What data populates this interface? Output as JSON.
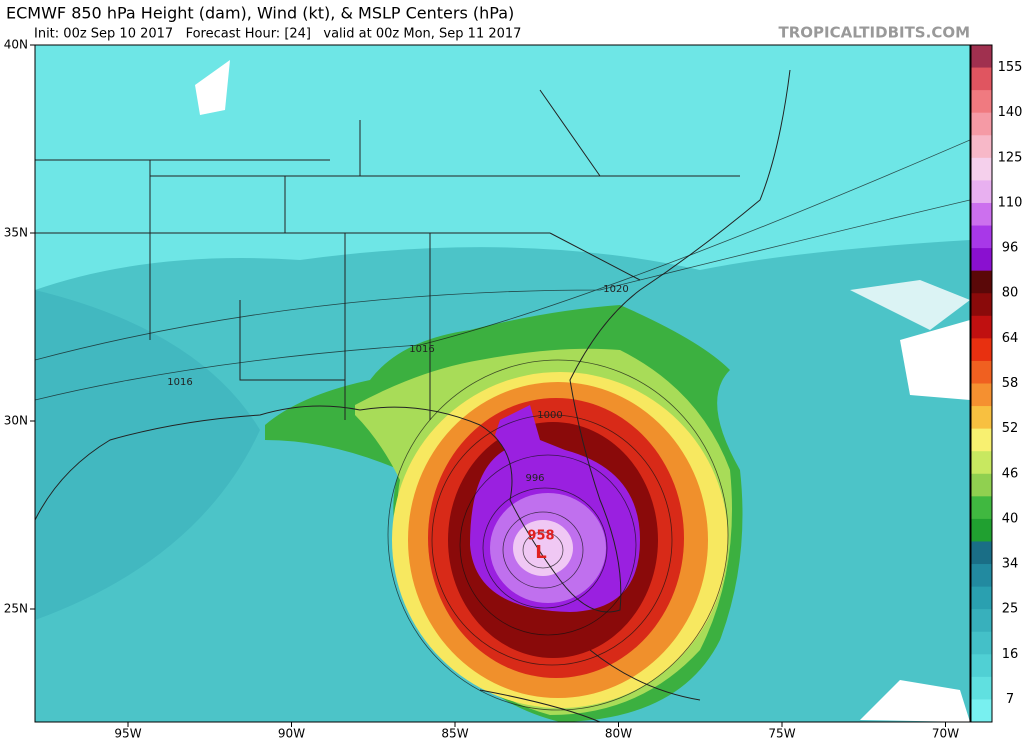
{
  "header": {
    "title": "ECMWF 850 hPa Height (dam), Wind (kt), & MSLP Centers (hPa)",
    "subtitle": "Init: 00z Sep 10 2017   Forecast Hour: [24]   valid at 00z Mon, Sep 11 2017",
    "source": "TROPICALTIDBITS.COM"
  },
  "map": {
    "latitude_labels": [
      "40N",
      "35N",
      "30N",
      "25N"
    ],
    "longitude_labels": [
      "95W",
      "90W",
      "85W",
      "80W",
      "75W",
      "70W"
    ],
    "contour_labels": [
      "1020",
      "1016",
      "1016",
      "1000",
      "996"
    ],
    "center": {
      "pressure": "958",
      "marker": "L"
    }
  },
  "colorbar": {
    "labels": [
      "155",
      "140",
      "125",
      "110",
      "96",
      "80",
      "64",
      "58",
      "52",
      "46",
      "40",
      "34",
      "25",
      "16",
      "7"
    ],
    "colors": [
      "#a0304f",
      "#e05560",
      "#f07a80",
      "#f59aa5",
      "#f7b8c8",
      "#f5d0ec",
      "#e8b0f0",
      "#cc70ee",
      "#a838e8",
      "#8a10d0",
      "#5a0808",
      "#8a0a0a",
      "#c01010",
      "#e83010",
      "#f06020",
      "#f59030",
      "#f8c040",
      "#f8f070",
      "#c8e860",
      "#90d050",
      "#40b840",
      "#20a030",
      "#1a6e86",
      "#228aa0",
      "#2aa0b0",
      "#38b0bc",
      "#44c0c8",
      "#50d0d4",
      "#60e0e0",
      "#78f0f0"
    ]
  }
}
